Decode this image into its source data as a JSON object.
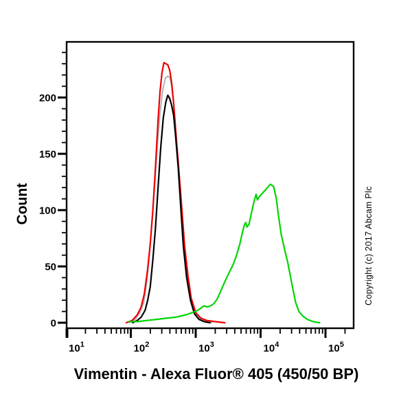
{
  "page": {
    "background": "#ffffff"
  },
  "chart_data": {
    "type": "line",
    "subtype": "flow-cytometry-histogram-overlay",
    "title": "Vimentin - Alexa Fluor® 405 (450/50 BP)",
    "xlabel": "Vimentin - Alexa Fluor® 405 (450/50 BP)",
    "ylabel": "Count",
    "copyright": "Copyright (c) 2017 Abcam Plc",
    "grid": false,
    "legend": "none",
    "x_scale": "log10",
    "xlim_log10": [
      1,
      5.43
    ],
    "x_tick_base": "10",
    "x_decades": [
      1,
      2,
      3,
      4,
      5
    ],
    "x_tick_labels": [
      "10^1",
      "10^2",
      "10^3",
      "10^4",
      "10^5"
    ],
    "ylim": [
      0,
      250
    ],
    "y_major_ticks": [
      0,
      50,
      100,
      150,
      200
    ],
    "y_minor_step": 10,
    "y_minor_max": 240,
    "axis_color": "#000000",
    "series": [
      {
        "name": "gray",
        "color": "#b2b2b2",
        "width": 2,
        "points": [
          [
            1.98,
            0
          ],
          [
            2.07,
            3
          ],
          [
            2.14,
            9
          ],
          [
            2.2,
            18
          ],
          [
            2.25,
            38
          ],
          [
            2.29,
            62
          ],
          [
            2.33,
            92
          ],
          [
            2.37,
            124
          ],
          [
            2.41,
            158
          ],
          [
            2.45,
            186
          ],
          [
            2.49,
            206
          ],
          [
            2.53,
            217
          ],
          [
            2.57,
            219
          ],
          [
            2.6,
            218
          ],
          [
            2.63,
            210
          ],
          [
            2.66,
            194
          ],
          [
            2.7,
            163
          ],
          [
            2.75,
            128
          ],
          [
            2.79,
            92
          ],
          [
            2.84,
            55
          ],
          [
            2.9,
            28
          ],
          [
            2.96,
            12
          ],
          [
            3.03,
            5
          ],
          [
            3.12,
            2
          ],
          [
            3.25,
            0
          ]
        ]
      },
      {
        "name": "red",
        "color": "#ee0000",
        "width": 2.2,
        "points": [
          [
            1.93,
            0
          ],
          [
            2.02,
            2
          ],
          [
            2.1,
            7
          ],
          [
            2.16,
            14
          ],
          [
            2.21,
            26
          ],
          [
            2.26,
            48
          ],
          [
            2.3,
            70
          ],
          [
            2.34,
            100
          ],
          [
            2.38,
            138
          ],
          [
            2.42,
            180
          ],
          [
            2.45,
            205
          ],
          [
            2.48,
            222
          ],
          [
            2.51,
            231
          ],
          [
            2.54,
            230
          ],
          [
            2.57,
            229
          ],
          [
            2.6,
            224
          ],
          [
            2.63,
            213
          ],
          [
            2.66,
            195
          ],
          [
            2.7,
            165
          ],
          [
            2.74,
            136
          ],
          [
            2.78,
            106
          ],
          [
            2.83,
            68
          ],
          [
            2.88,
            42
          ],
          [
            2.93,
            22
          ],
          [
            3.0,
            9
          ],
          [
            3.08,
            4
          ],
          [
            3.17,
            2
          ],
          [
            3.3,
            1
          ],
          [
            3.45,
            0
          ]
        ]
      },
      {
        "name": "black",
        "color": "#000000",
        "width": 2.2,
        "points": [
          [
            2.03,
            0
          ],
          [
            2.1,
            2
          ],
          [
            2.16,
            5
          ],
          [
            2.22,
            11
          ],
          [
            2.26,
            20
          ],
          [
            2.3,
            32
          ],
          [
            2.34,
            56
          ],
          [
            2.38,
            84
          ],
          [
            2.42,
            120
          ],
          [
            2.46,
            155
          ],
          [
            2.5,
            182
          ],
          [
            2.54,
            196
          ],
          [
            2.57,
            202
          ],
          [
            2.6,
            199
          ],
          [
            2.63,
            193
          ],
          [
            2.66,
            184
          ],
          [
            2.69,
            166
          ],
          [
            2.73,
            138
          ],
          [
            2.77,
            102
          ],
          [
            2.81,
            68
          ],
          [
            2.86,
            40
          ],
          [
            2.92,
            20
          ],
          [
            2.98,
            8
          ],
          [
            3.05,
            3
          ],
          [
            3.13,
            1
          ],
          [
            3.22,
            0
          ]
        ]
      },
      {
        "name": "green",
        "color": "#00d400",
        "width": 2.2,
        "points": [
          [
            1.97,
            1
          ],
          [
            2.1,
            1
          ],
          [
            2.25,
            2
          ],
          [
            2.4,
            3
          ],
          [
            2.55,
            4
          ],
          [
            2.7,
            5
          ],
          [
            2.85,
            7
          ],
          [
            2.95,
            9
          ],
          [
            3.03,
            11
          ],
          [
            3.08,
            13
          ],
          [
            3.13,
            15
          ],
          [
            3.18,
            14
          ],
          [
            3.23,
            15
          ],
          [
            3.28,
            17
          ],
          [
            3.33,
            21
          ],
          [
            3.4,
            30
          ],
          [
            3.46,
            38
          ],
          [
            3.52,
            45
          ],
          [
            3.58,
            52
          ],
          [
            3.63,
            60
          ],
          [
            3.68,
            70
          ],
          [
            3.72,
            80
          ],
          [
            3.75,
            87
          ],
          [
            3.77,
            89
          ],
          [
            3.79,
            85
          ],
          [
            3.82,
            87
          ],
          [
            3.86,
            98
          ],
          [
            3.9,
            108
          ],
          [
            3.93,
            114
          ],
          [
            3.95,
            109
          ],
          [
            3.98,
            112
          ],
          [
            4.03,
            115
          ],
          [
            4.09,
            119
          ],
          [
            4.15,
            123
          ],
          [
            4.2,
            121
          ],
          [
            4.24,
            111
          ],
          [
            4.28,
            93
          ],
          [
            4.32,
            78
          ],
          [
            4.37,
            65
          ],
          [
            4.42,
            53
          ],
          [
            4.46,
            41
          ],
          [
            4.5,
            29
          ],
          [
            4.54,
            18
          ],
          [
            4.59,
            10
          ],
          [
            4.65,
            6
          ],
          [
            4.72,
            3
          ],
          [
            4.81,
            1
          ],
          [
            4.91,
            0
          ]
        ]
      }
    ]
  }
}
